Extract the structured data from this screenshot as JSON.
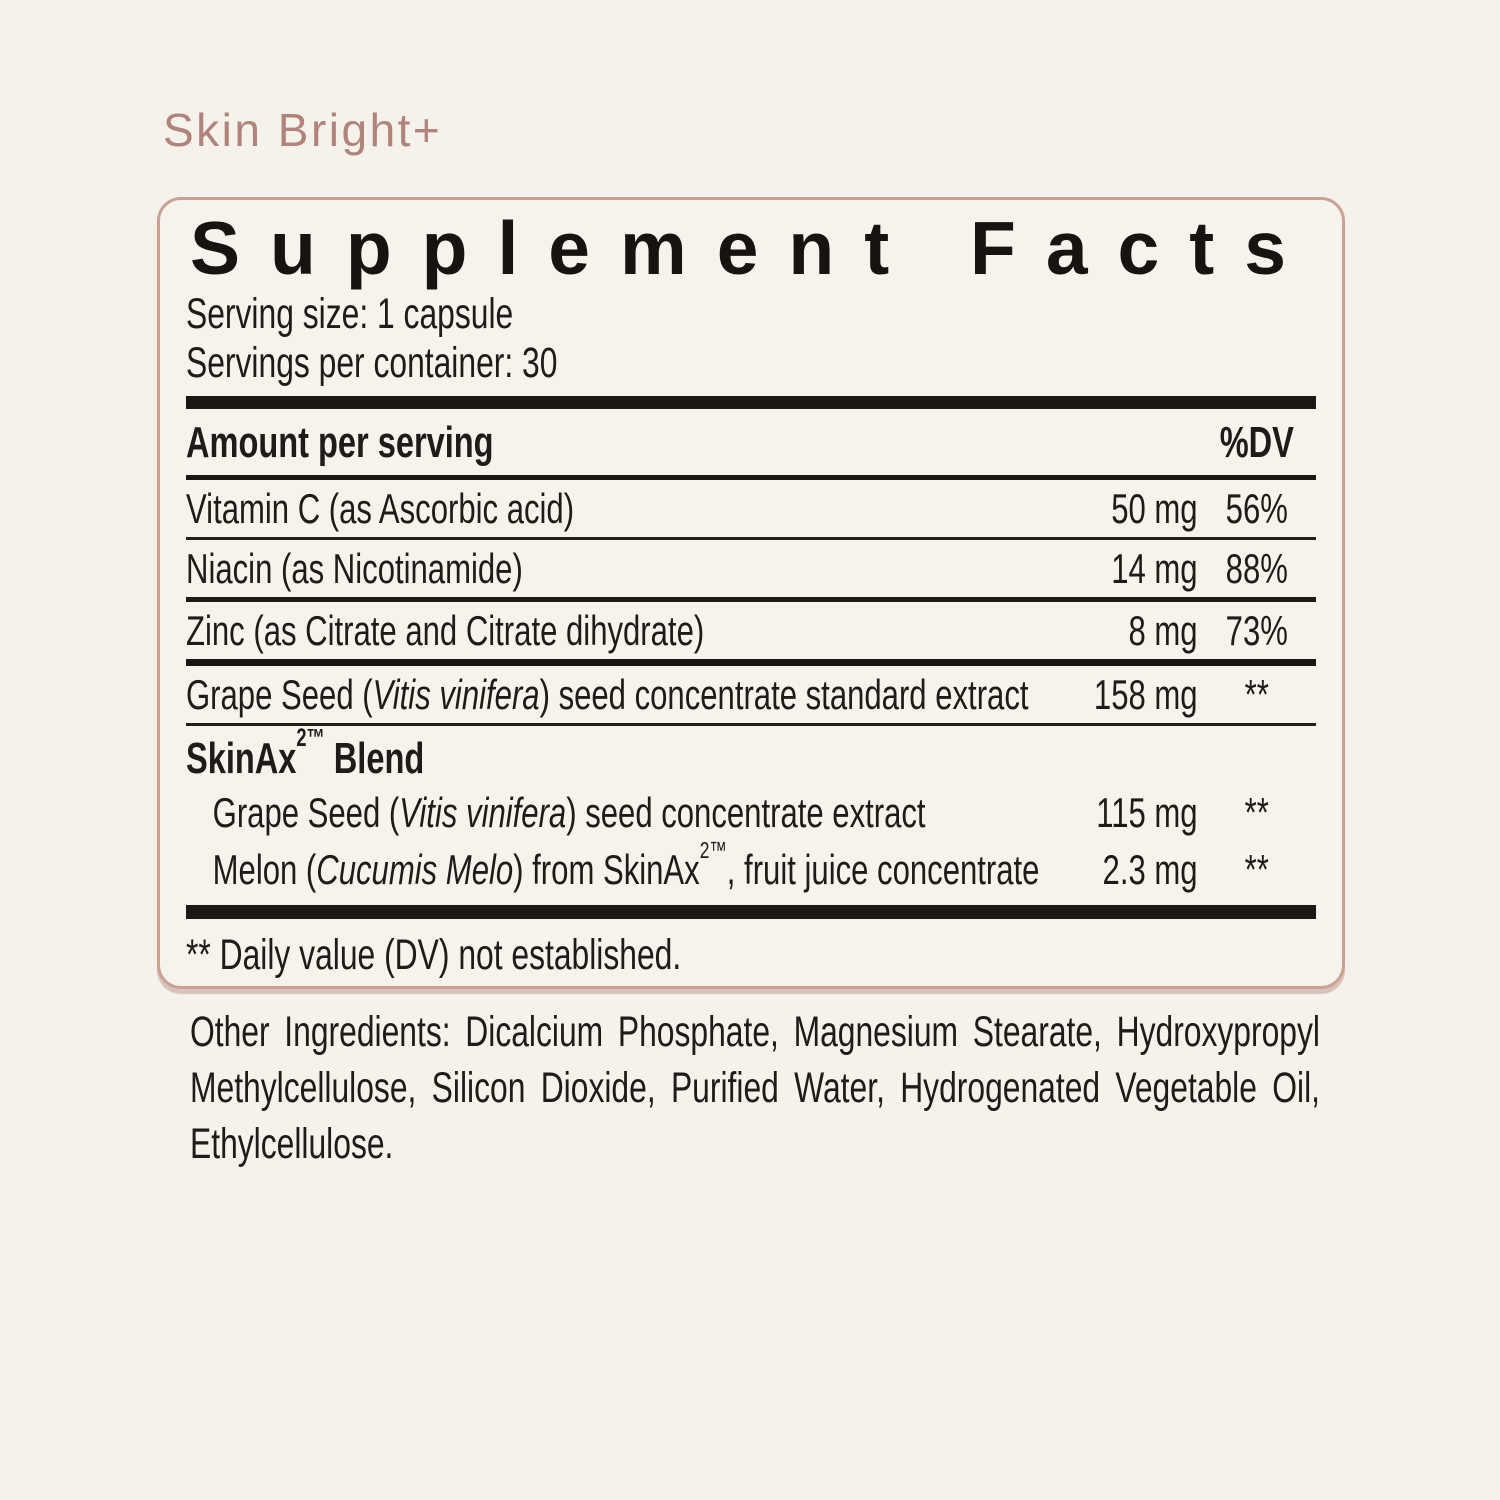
{
  "page": {
    "background_color": "#f5f2ec",
    "accent_color": "#b0837b",
    "panel_border_color": "#c9a295",
    "rule_color": "#1a1714",
    "text_color": "#1e1b18"
  },
  "product": {
    "name": "Skin Bright+"
  },
  "panel": {
    "title": "Supplement Facts",
    "serving_size": "Serving size: 1 capsule",
    "servings_per_container": "Servings per container: 30",
    "header": {
      "amount_label": "Amount per serving",
      "dv_label": "%DV"
    },
    "rows": [
      {
        "pre": "Vitamin C (as Ascorbic acid)",
        "italic": "",
        "post": "",
        "amount": "50 mg",
        "dv": "56%"
      },
      {
        "pre": "Niacin (as Nicotinamide)",
        "italic": "",
        "post": "",
        "amount": "14 mg",
        "dv": "88%"
      },
      {
        "pre": "Zinc (as Citrate and Citrate dihydrate)",
        "italic": "",
        "post": "",
        "amount": "8 mg",
        "dv": "73%"
      },
      {
        "pre": "Grape Seed (",
        "italic": "Vitis vinifera",
        "post": ") seed concentrate standard extract",
        "amount": "158 mg",
        "dv": "**"
      }
    ],
    "blend": {
      "name": "SkinAx",
      "sup": "2™",
      "suffix": " Blend",
      "items": [
        {
          "pre": "Grape Seed (",
          "italic": "Vitis vinifera",
          "mid": ") seed concentrate extract",
          "sup": "",
          "post": "",
          "amount": "115 mg",
          "dv": "**"
        },
        {
          "pre": "Melon (",
          "italic": "Cucumis Melo",
          "mid": ") from SkinAx",
          "sup": "2™",
          "post": ", fruit juice concentrate",
          "amount": "2.3 mg",
          "dv": "**"
        }
      ]
    },
    "footnote": "** Daily value (DV) not established."
  },
  "other_ingredients": {
    "lines": [
      "Other Ingredients: Dicalcium Phosphate, Magnesium Stearate, Hydroxypropyl",
      "Methylcellulose, Silicon Dioxide, Purified Water, Hydrogenated Vegetable Oil,",
      "Ethylcellulose."
    ]
  }
}
